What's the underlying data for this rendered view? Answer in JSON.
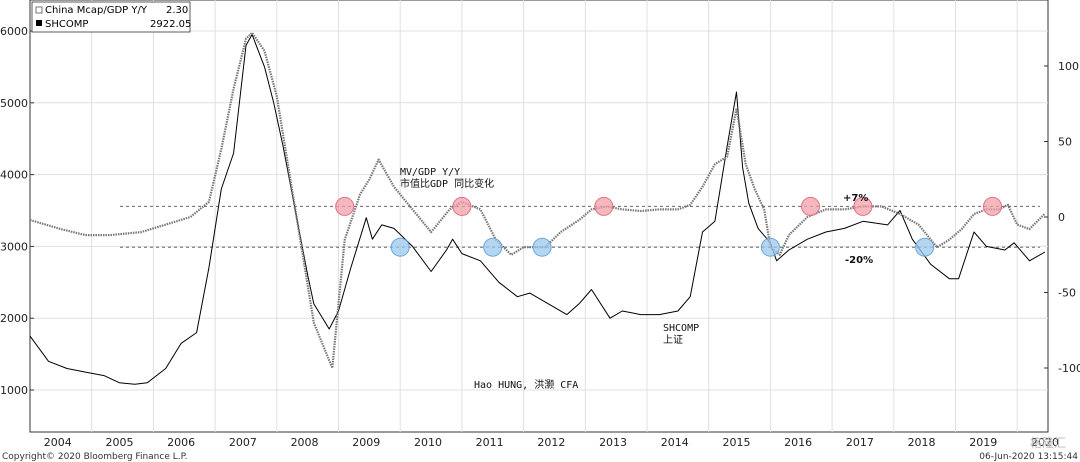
{
  "chart_data": {
    "type": "line",
    "left_axis": {
      "ticks": [
        1000,
        2000,
        3000,
        4000,
        5000,
        6000
      ]
    },
    "right_axis": {
      "ticks": [
        100,
        50,
        0,
        -50,
        -100
      ]
    },
    "x_tick_labels": [
      "2004",
      "2005",
      "2006",
      "2007",
      "2008",
      "2009",
      "2010",
      "2011",
      "2012",
      "2013",
      "2014",
      "2015",
      "2016",
      "2017",
      "2018",
      "2019",
      "2020"
    ],
    "legend": [
      {
        "label": "China Mcap/GDP Y/Y",
        "value": "2.30",
        "color": "#888888",
        "style": "dotted"
      },
      {
        "label": "SHCOMP",
        "value": "2922.05",
        "color": "#000000",
        "style": "solid"
      }
    ],
    "reference_lines": [
      {
        "axis": "right",
        "value": 7,
        "label": "+7%"
      },
      {
        "axis": "right",
        "value": -20,
        "label": "-20%"
      }
    ],
    "series": [
      {
        "name": "SHCOMP",
        "axis": "left",
        "x": [
          2004.0,
          2004.3,
          2004.6,
          2004.9,
          2005.2,
          2005.45,
          2005.7,
          2005.9,
          2006.2,
          2006.45,
          2006.7,
          2006.9,
          2007.1,
          2007.3,
          2007.5,
          2007.6,
          2007.8,
          2007.95,
          2008.1,
          2008.3,
          2008.5,
          2008.6,
          2008.85,
          2009.0,
          2009.2,
          2009.45,
          2009.55,
          2009.7,
          2009.9,
          2010.2,
          2010.5,
          2010.75,
          2010.85,
          2011.0,
          2011.3,
          2011.6,
          2011.9,
          2012.1,
          2012.4,
          2012.7,
          2012.9,
          2013.1,
          2013.4,
          2013.6,
          2013.9,
          2014.2,
          2014.5,
          2014.7,
          2014.9,
          2015.1,
          2015.3,
          2015.45,
          2015.55,
          2015.65,
          2015.8,
          2016.0,
          2016.1,
          2016.3,
          2016.6,
          2016.9,
          2017.2,
          2017.5,
          2017.9,
          2018.1,
          2018.3,
          2018.6,
          2018.9,
          2019.05,
          2019.3,
          2019.5,
          2019.8,
          2019.95,
          2020.2,
          2020.45
        ],
        "values": [
          1750,
          1400,
          1300,
          1250,
          1200,
          1100,
          1080,
          1100,
          1300,
          1650,
          1800,
          2700,
          3800,
          4300,
          5800,
          5950,
          5500,
          5000,
          4400,
          3500,
          2600,
          2200,
          1850,
          2100,
          2700,
          3400,
          3100,
          3300,
          3250,
          3000,
          2650,
          2950,
          3100,
          2900,
          2800,
          2500,
          2300,
          2350,
          2200,
          2050,
          2200,
          2400,
          2000,
          2100,
          2050,
          2050,
          2100,
          2300,
          3200,
          3350,
          4400,
          5150,
          4100,
          3600,
          3250,
          3050,
          2800,
          2950,
          3100,
          3200,
          3250,
          3350,
          3300,
          3500,
          3100,
          2750,
          2550,
          2550,
          3200,
          3000,
          2950,
          3050,
          2800,
          2922.05
        ]
      },
      {
        "name": "China Mcap/GDP Y/Y",
        "axis": "right",
        "x": [
          2004.0,
          2004.5,
          2004.9,
          2005.3,
          2005.8,
          2006.2,
          2006.6,
          2006.9,
          2007.1,
          2007.3,
          2007.5,
          2007.6,
          2007.8,
          2008.0,
          2008.2,
          2008.4,
          2008.6,
          2008.9,
          2009.1,
          2009.35,
          2009.5,
          2009.65,
          2009.9,
          2010.2,
          2010.5,
          2010.8,
          2011.0,
          2011.3,
          2011.55,
          2011.8,
          2012.0,
          2012.35,
          2012.6,
          2012.9,
          2013.1,
          2013.35,
          2013.6,
          2013.9,
          2014.2,
          2014.5,
          2014.7,
          2014.9,
          2015.1,
          2015.3,
          2015.45,
          2015.6,
          2015.75,
          2015.9,
          2016.0,
          2016.15,
          2016.3,
          2016.6,
          2016.9,
          2017.2,
          2017.5,
          2017.8,
          2018.1,
          2018.4,
          2018.7,
          2018.9,
          2019.1,
          2019.3,
          2019.5,
          2019.7,
          2019.85,
          2020.0,
          2020.2,
          2020.45
        ],
        "values": [
          -2,
          -8,
          -12,
          -12,
          -10,
          -5,
          0,
          10,
          45,
          85,
          118,
          122,
          110,
          80,
          30,
          -20,
          -70,
          -100,
          -15,
          15,
          25,
          38,
          20,
          5,
          -10,
          5,
          10,
          5,
          -15,
          -25,
          -20,
          -20,
          -10,
          -2,
          5,
          7,
          5,
          4,
          5,
          5,
          8,
          20,
          35,
          40,
          72,
          35,
          18,
          5,
          -20,
          -25,
          -12,
          0,
          5,
          5,
          7,
          7,
          2,
          -5,
          -20,
          -15,
          -8,
          2,
          5,
          5,
          8,
          -5,
          -8,
          2.3
        ]
      }
    ],
    "annotations": [
      {
        "text_en": "MV/GDP Y/Y",
        "text_zh": "市值比GDP 同比变化"
      },
      {
        "text_en": "SHCOMP",
        "text_zh": "上证"
      },
      {
        "text": "Hao HUNG, 洪灏 CFA"
      },
      {
        "text": "+7%"
      },
      {
        "text": "-20%"
      }
    ],
    "peak_markers_x": [
      2009.1,
      2011.0,
      2013.3,
      2016.65,
      2017.5,
      2019.6
    ],
    "trough_markers_x": [
      2010.0,
      2011.5,
      2012.3,
      2016.0,
      2018.5
    ],
    "grid": true
  },
  "footer": {
    "copyright": "Copyright© 2020 Bloomberg Finance L.P.",
    "timestamp": "06-Jun-2020 13:15:44"
  },
  "watermark": "格隆汇"
}
